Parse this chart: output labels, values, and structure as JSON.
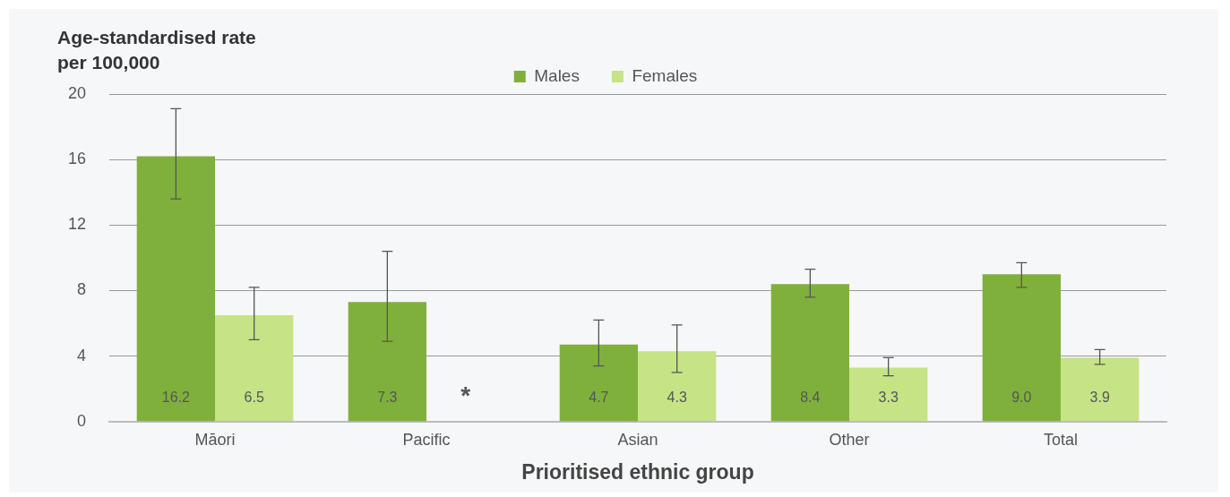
{
  "chart_data": {
    "type": "bar",
    "ylabel": "Age-standardised rate per 100,000",
    "xlabel": "Prioritised ethnic group",
    "categories": [
      "Māori",
      "Pacific",
      "Asian",
      "Other",
      "Total"
    ],
    "series": [
      {
        "name": "Males",
        "color": "#80b03c",
        "values": [
          16.2,
          7.3,
          4.7,
          8.4,
          9.0
        ],
        "value_labels": [
          "16.2",
          "7.3",
          "4.7",
          "8.4",
          "9.0"
        ],
        "errors": [
          [
            13.6,
            19.1
          ],
          [
            4.9,
            10.4
          ],
          [
            3.4,
            6.2
          ],
          [
            7.6,
            9.3
          ],
          [
            8.2,
            9.7
          ]
        ]
      },
      {
        "name": "Females",
        "color": "#c6e386",
        "values": [
          6.5,
          null,
          4.3,
          3.3,
          3.9
        ],
        "value_labels": [
          "6.5",
          null,
          "4.3",
          "3.3",
          "3.9"
        ],
        "errors": [
          [
            5.0,
            8.2
          ],
          null,
          [
            3.0,
            5.9
          ],
          [
            2.8,
            3.9
          ],
          [
            3.5,
            4.4
          ]
        ]
      }
    ],
    "annotations": [
      {
        "text": "*",
        "x": "Pacific",
        "y": 0
      }
    ],
    "ylim": [
      0,
      20
    ],
    "yticks": [
      0,
      4,
      8,
      12,
      16,
      20
    ],
    "grid": "y",
    "legend": "top"
  }
}
